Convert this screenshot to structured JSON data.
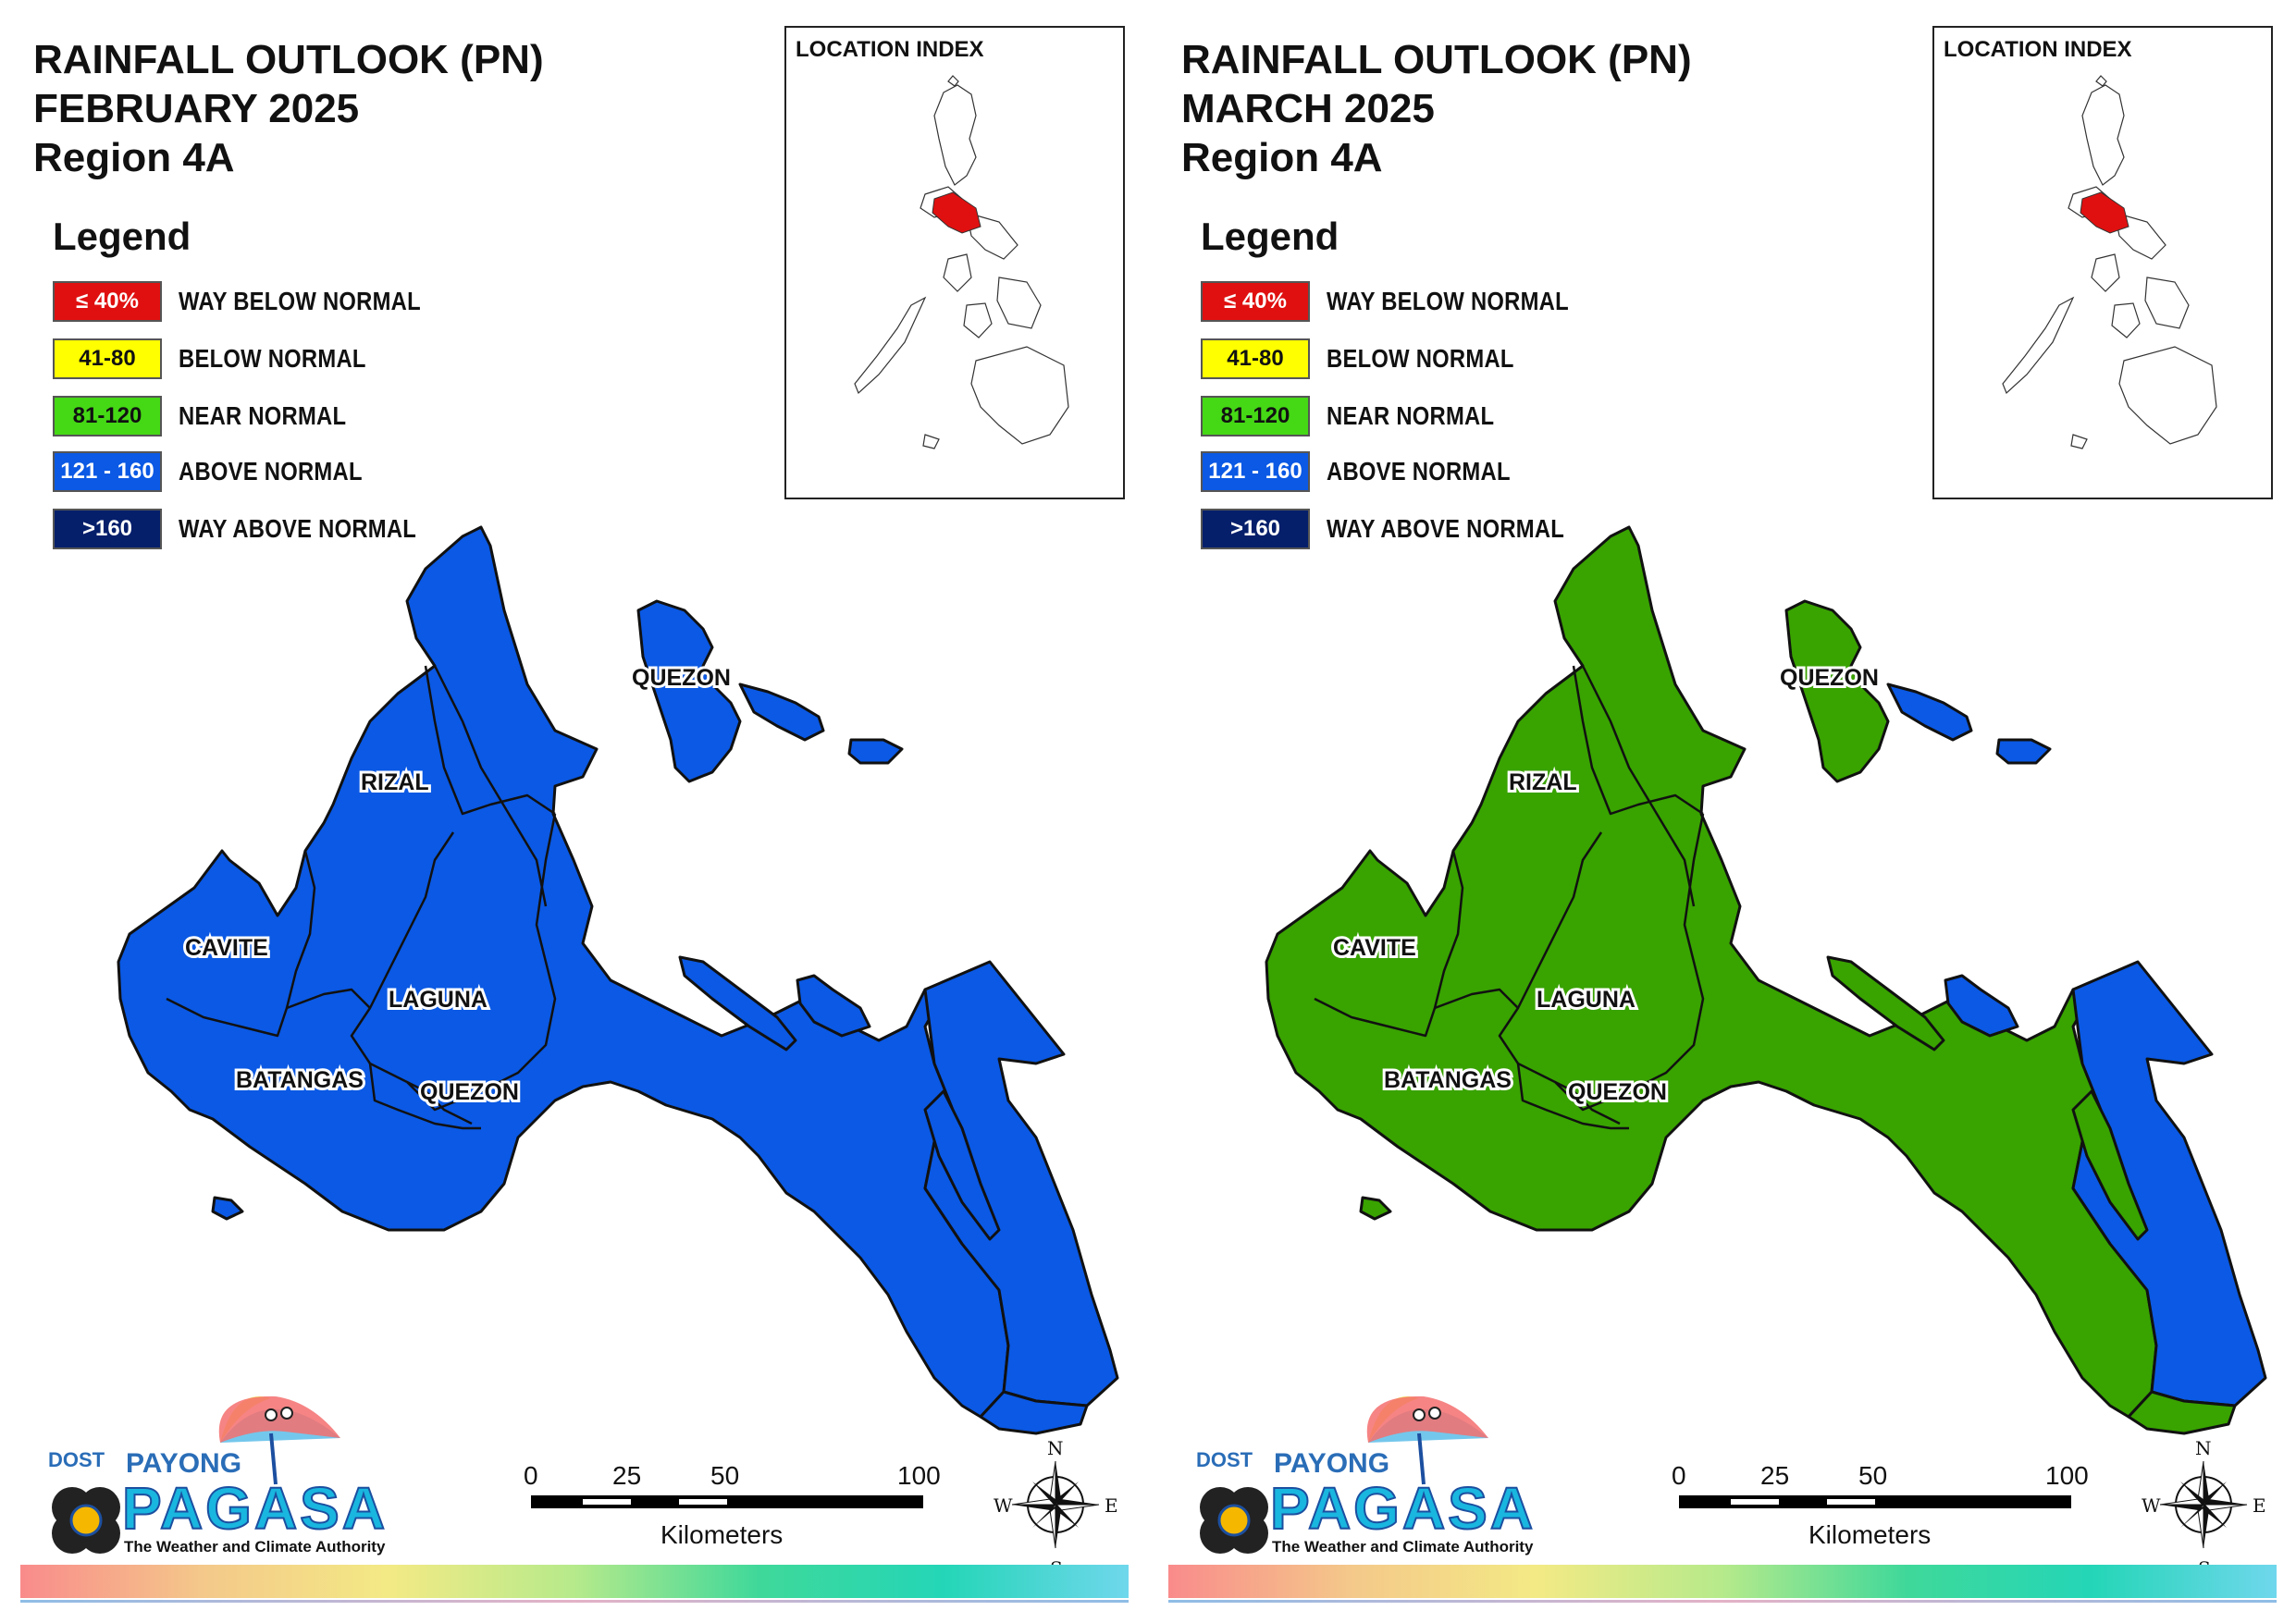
{
  "panels": [
    {
      "title_line1": "RAINFALL OUTLOOK (PN)",
      "title_line2": "FEBRUARY 2025",
      "title_line3": "Region 4A",
      "fill_main": "#0b59e4",
      "fill_south": "#0b59e4",
      "fill_coast": "#0b59e4"
    },
    {
      "title_line1": "RAINFALL OUTLOOK (PN)",
      "title_line2": "MARCH 2025",
      "title_line3": "Region 4A",
      "fill_main": "#39a300",
      "fill_south": "#0b59e4",
      "fill_coast": "#39a300"
    }
  ],
  "legend": {
    "title": "Legend",
    "items": [
      {
        "range": "≤ 40%",
        "label": "WAY BELOW NORMAL",
        "color": "#e01010",
        "text_color": "#ffffff"
      },
      {
        "range": "41-80",
        "label": "BELOW NORMAL",
        "color": "#ffff00",
        "text_color": "#111111"
      },
      {
        "range": "81-120",
        "label": "NEAR NORMAL",
        "color": "#45d815",
        "text_color": "#111111"
      },
      {
        "range": "121 - 160",
        "label": "ABOVE NORMAL",
        "color": "#0b59e4",
        "text_color": "#ffffff"
      },
      {
        "range": ">160",
        "label": "WAY ABOVE NORMAL",
        "color": "#061f6b",
        "text_color": "#ffffff"
      }
    ]
  },
  "inset": {
    "title": "LOCATION INDEX",
    "highlight_color": "#e01010"
  },
  "provinces": {
    "quezon_north": "QUEZON",
    "rizal": "RIZAL",
    "cavite": "CAVITE",
    "laguna": "LAGUNA",
    "batangas": "BATANGAS",
    "quezon_south": "QUEZON"
  },
  "scale": {
    "t0": "0",
    "t25": "25",
    "t50": "50",
    "t100": "100",
    "unit": "Kilometers"
  },
  "compass": {
    "n": "N",
    "s": "S",
    "e": "E",
    "w": "W"
  },
  "logo": {
    "dost": "DOST",
    "payong": "PAYONG",
    "pagasa": "PAGASA",
    "tagline": "The Weather and Climate Authority"
  }
}
